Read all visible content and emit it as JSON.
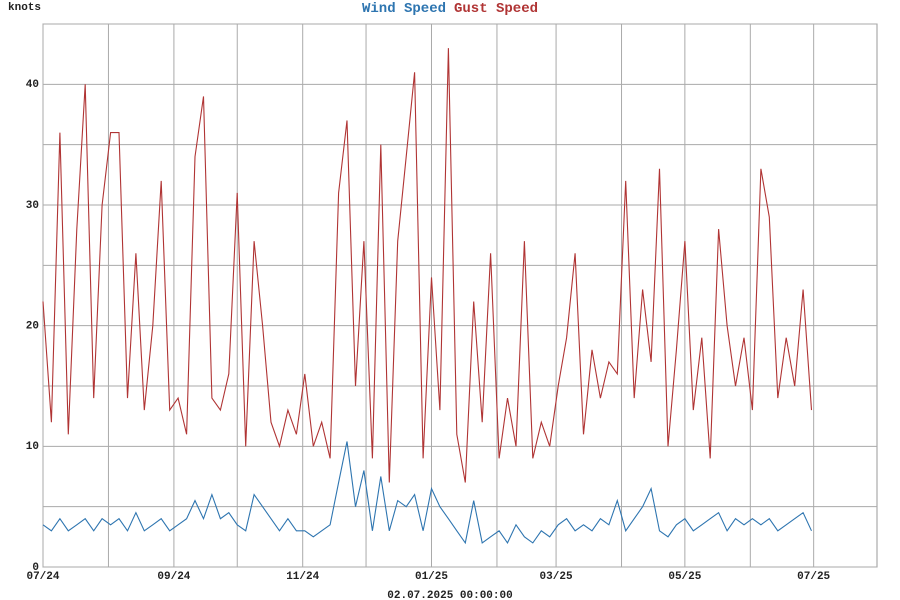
{
  "chart_data": {
    "type": "line",
    "y_label": "knots",
    "x_label": "02.07.2025 00:00:00",
    "x": [
      0,
      4,
      8,
      12,
      16,
      20,
      24,
      28,
      32,
      36,
      40,
      44,
      48,
      52,
      56,
      60,
      64,
      68,
      72,
      76,
      80,
      84,
      88,
      92,
      96,
      100,
      104,
      108,
      112,
      116,
      120,
      124,
      128,
      132,
      136,
      140,
      144,
      148,
      152,
      156,
      160,
      164,
      168,
      172,
      176,
      180,
      184,
      188,
      192,
      196,
      200,
      204,
      208,
      212,
      216,
      220,
      224,
      228,
      232,
      236,
      240,
      244,
      248,
      252,
      256,
      260,
      264,
      268,
      272,
      276,
      280,
      284,
      288,
      292,
      296,
      300,
      304,
      308,
      312,
      316,
      320,
      324,
      328,
      332,
      336,
      340,
      344,
      348,
      352,
      356,
      360,
      364
    ],
    "series": [
      {
        "name": "Wind Speed",
        "color": "#2e75b0",
        "values": [
          3.5,
          3,
          4,
          3,
          3.5,
          4,
          3,
          4,
          3.5,
          4,
          3,
          4.5,
          3,
          3.5,
          4,
          3,
          3.5,
          4,
          5.5,
          4,
          6,
          4,
          4.5,
          3.5,
          3,
          6,
          5,
          4,
          3,
          4,
          3,
          3,
          2.5,
          3,
          3.5,
          7,
          10.4,
          5,
          8,
          3,
          7.5,
          3,
          5.5,
          5,
          6,
          3,
          6.5,
          5,
          4,
          3,
          2,
          5.5,
          2,
          2.5,
          3,
          2,
          3.5,
          2.5,
          2,
          3,
          2.5,
          3.5,
          4,
          3,
          3.5,
          3,
          4,
          3.5,
          5.5,
          3,
          4,
          5,
          6.5,
          3,
          2.5,
          3.5,
          4,
          3,
          3.5,
          4,
          4.5,
          3,
          4,
          3.5,
          4,
          3.5,
          4,
          3,
          3.5,
          4,
          4.5,
          3
        ]
      },
      {
        "name": "Gust Speed",
        "color": "#b03434",
        "values": [
          22,
          12,
          36,
          11,
          28,
          40,
          14,
          30,
          36,
          36,
          14,
          26,
          13,
          20,
          32,
          13,
          14,
          11,
          34,
          39,
          14,
          13,
          16,
          31,
          10,
          27,
          20,
          12,
          10,
          13,
          11,
          16,
          10,
          12,
          9,
          31,
          37,
          15,
          27,
          9,
          35,
          7,
          27,
          34,
          41,
          9,
          24,
          13,
          43,
          11,
          7,
          22,
          12,
          26,
          9,
          14,
          10,
          27,
          9,
          12,
          10,
          15,
          19,
          26,
          11,
          18,
          14,
          17,
          16,
          32,
          14,
          23,
          17,
          33,
          10,
          18,
          27,
          13,
          19,
          9,
          28,
          20,
          15,
          19,
          13,
          33,
          29,
          14,
          19,
          15,
          23,
          13
        ]
      }
    ],
    "xlim": [
      0,
      395
    ],
    "xticks": [
      {
        "value": 0,
        "label": "07/24"
      },
      {
        "value": 62,
        "label": "09/24"
      },
      {
        "value": 123,
        "label": "11/24"
      },
      {
        "value": 184,
        "label": "01/25"
      },
      {
        "value": 243,
        "label": "03/25"
      },
      {
        "value": 304,
        "label": "05/25"
      },
      {
        "value": 365,
        "label": "07/25"
      }
    ],
    "minor_xticks": [
      31,
      92,
      153,
      215,
      274,
      335
    ],
    "ylim": [
      0,
      45
    ],
    "yticks": [
      0,
      10,
      20,
      30,
      40
    ],
    "minor_yticks": [
      5,
      15,
      25,
      35,
      45
    ],
    "grid": true
  }
}
